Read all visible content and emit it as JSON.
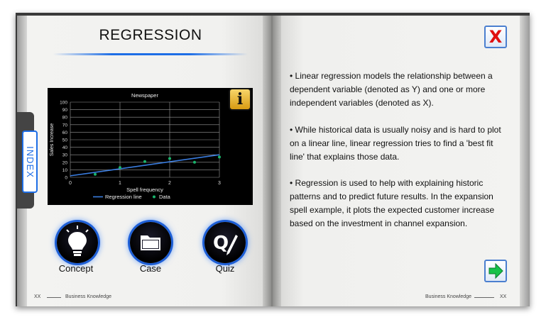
{
  "left_page": {
    "title": "REGRESSION",
    "index_tab": "INDEX",
    "info_button": "i",
    "buttons": [
      {
        "label": "Concept"
      },
      {
        "label": "Case"
      },
      {
        "label": "Quiz"
      }
    ],
    "footer": {
      "page": "XX",
      "text": "Business Knowledge"
    }
  },
  "right_page": {
    "close_label": "X",
    "paragraphs": [
      "• Linear regression models the relationship between a dependent variable (denoted as Y) and one or more independent variables (denoted as X).",
      "• While historical data is usually noisy and is hard to plot on a linear line, linear regression tries to find a 'best fit line' that explains those data.",
      "• Regression is used to help with explaining historic patterns and to predict future results. In the expansion spell example, it plots the expected customer increase based on the investment in channel expansion."
    ],
    "footer": {
      "page": "XX",
      "text": "Business Knowledge"
    }
  },
  "colors": {
    "accent": "#1e6ee6",
    "chart_line": "#3a7de0",
    "chart_points": "#19b36b",
    "close": "#e01010",
    "next": "#17c24a"
  },
  "chart_data": {
    "type": "scatter",
    "title": "Newspaper",
    "xlabel": "Spell frequency",
    "ylabel": "Sales Increase",
    "xlim": [
      0,
      3
    ],
    "ylim": [
      0,
      100
    ],
    "x_ticks": [
      "0",
      "1",
      "2",
      "3"
    ],
    "y_ticks": [
      "0",
      "10",
      "20",
      "30",
      "40",
      "50",
      "60",
      "70",
      "80",
      "90",
      "100"
    ],
    "grid": true,
    "legend_placement": "bottom",
    "series": [
      {
        "name": "Data",
        "kind": "points",
        "x": [
          0.5,
          1.0,
          1.5,
          2.0,
          2.5,
          3.0
        ],
        "y": [
          4,
          13,
          21,
          25,
          20,
          27
        ]
      },
      {
        "name": "Regression line",
        "kind": "line",
        "x": [
          0,
          3
        ],
        "y": [
          2,
          30
        ]
      }
    ]
  }
}
